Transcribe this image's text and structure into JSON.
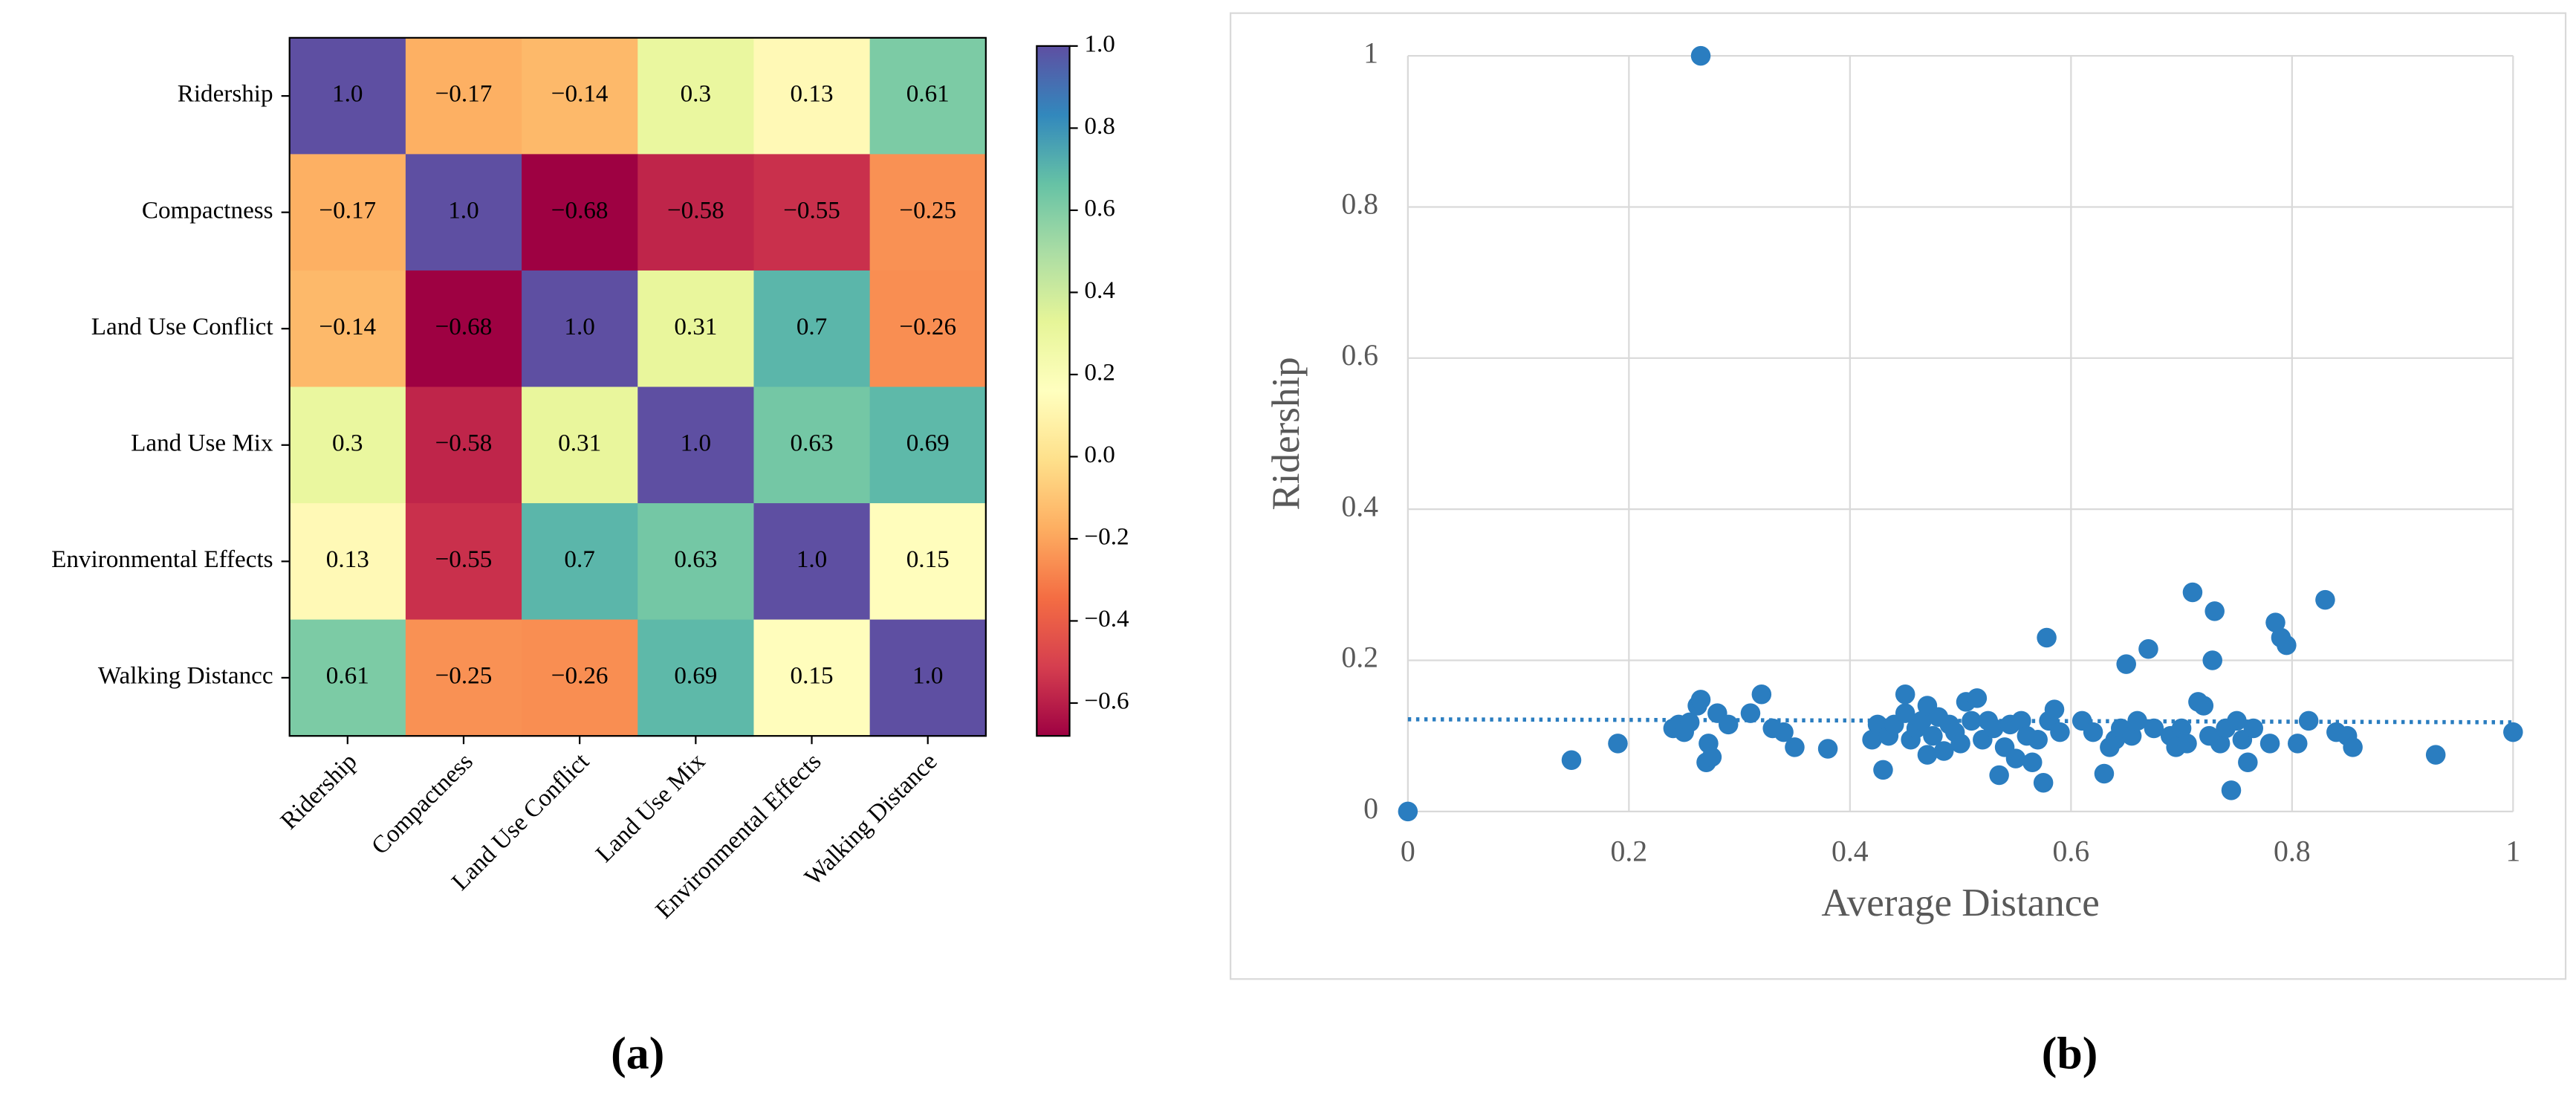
{
  "chart_data": [
    {
      "type": "heatmap",
      "panel_label": "(a)",
      "colormap": "Spectral",
      "row_categories": [
        "Ridership",
        "Compactness",
        "Land Use Conflict",
        "Land Use Mix",
        "Environmental Effects",
        "Walking Distancc"
      ],
      "col_categories": [
        "Ridership",
        "Compactness",
        "Land Use Conflict",
        "Land Use Mix",
        "Environmental Effects",
        "Walking Distance"
      ],
      "values": [
        [
          1.0,
          -0.17,
          -0.14,
          0.3,
          0.13,
          0.61
        ],
        [
          -0.17,
          1.0,
          -0.68,
          -0.58,
          -0.55,
          -0.25
        ],
        [
          -0.14,
          -0.68,
          1.0,
          0.31,
          0.7,
          -0.26
        ],
        [
          0.3,
          -0.58,
          0.31,
          1.0,
          0.63,
          0.69
        ],
        [
          0.13,
          -0.55,
          0.7,
          0.63,
          1.0,
          0.15
        ],
        [
          0.61,
          -0.25,
          -0.26,
          0.69,
          0.15,
          1.0
        ]
      ],
      "value_labels": [
        [
          "1.0",
          "−0.17",
          "−0.14",
          "0.3",
          "0.13",
          "0.61"
        ],
        [
          "−0.17",
          "1.0",
          "−0.68",
          "−0.58",
          "−0.55",
          "−0.25"
        ],
        [
          "−0.14",
          "−0.68",
          "1.0",
          "0.31",
          "0.7",
          "−0.26"
        ],
        [
          "0.3",
          "−0.58",
          "0.31",
          "1.0",
          "0.63",
          "0.69"
        ],
        [
          "0.13",
          "−0.55",
          "0.7",
          "0.63",
          "1.0",
          "0.15"
        ],
        [
          "0.61",
          "−0.25",
          "−0.26",
          "0.69",
          "0.15",
          "1.0"
        ]
      ],
      "clim": [
        -0.68,
        1.0
      ],
      "cticks": [
        {
          "value": 1.0,
          "label": "1.0"
        },
        {
          "value": 0.8,
          "label": "0.8"
        },
        {
          "value": 0.6,
          "label": "0.6"
        },
        {
          "value": 0.4,
          "label": "0.4"
        },
        {
          "value": 0.2,
          "label": "0.2"
        },
        {
          "value": 0.0,
          "label": "0.0"
        },
        {
          "value": -0.2,
          "label": "−0.2"
        },
        {
          "value": -0.4,
          "label": "−0.4"
        },
        {
          "value": -0.6,
          "label": "−0.6"
        }
      ]
    },
    {
      "type": "scatter",
      "panel_label": "(b)",
      "xlabel": "Average Distance",
      "ylabel": "Ridership",
      "color": "#2a7dc0",
      "grid": true,
      "xlim": [
        0,
        1
      ],
      "ylim": [
        0,
        1
      ],
      "xticks": [
        0,
        0.2,
        0.4,
        0.6,
        0.8,
        1
      ],
      "yticks": [
        0,
        0.2,
        0.4,
        0.6,
        0.8,
        1
      ],
      "x": [
        0,
        0.265,
        0.148,
        0.19,
        0.24,
        0.245,
        0.25,
        0.255,
        0.262,
        0.265,
        0.27,
        0.272,
        0.275,
        0.28,
        0.29,
        0.31,
        0.32,
        0.33,
        0.34,
        0.35,
        0.38,
        0.42,
        0.425,
        0.43,
        0.435,
        0.44,
        0.45,
        0.45,
        0.455,
        0.46,
        0.465,
        0.47,
        0.47,
        0.475,
        0.48,
        0.485,
        0.49,
        0.495,
        0.5,
        0.505,
        0.51,
        0.515,
        0.52,
        0.525,
        0.53,
        0.535,
        0.54,
        0.545,
        0.55,
        0.555,
        0.56,
        0.565,
        0.57,
        0.575,
        0.578,
        0.58,
        0.585,
        0.59,
        0.61,
        0.62,
        0.63,
        0.635,
        0.64,
        0.645,
        0.65,
        0.655,
        0.66,
        0.67,
        0.675,
        0.69,
        0.695,
        0.7,
        0.705,
        0.71,
        0.715,
        0.72,
        0.725,
        0.728,
        0.73,
        0.735,
        0.74,
        0.745,
        0.75,
        0.755,
        0.76,
        0.765,
        0.78,
        0.785,
        0.79,
        0.795,
        0.805,
        0.815,
        0.83,
        0.84,
        0.85,
        0.855,
        0.93,
        1.0
      ],
      "y": [
        0,
        1.0,
        0.068,
        0.09,
        0.11,
        0.115,
        0.105,
        0.118,
        0.14,
        0.148,
        0.065,
        0.09,
        0.072,
        0.13,
        0.115,
        0.13,
        0.155,
        0.11,
        0.105,
        0.085,
        0.083,
        0.095,
        0.115,
        0.055,
        0.1,
        0.115,
        0.13,
        0.155,
        0.095,
        0.11,
        0.12,
        0.075,
        0.14,
        0.1,
        0.125,
        0.08,
        0.115,
        0.105,
        0.09,
        0.145,
        0.12,
        0.15,
        0.095,
        0.12,
        0.11,
        0.048,
        0.085,
        0.115,
        0.07,
        0.12,
        0.1,
        0.065,
        0.095,
        0.038,
        0.23,
        0.12,
        0.135,
        0.105,
        0.12,
        0.105,
        0.05,
        0.085,
        0.095,
        0.11,
        0.195,
        0.1,
        0.12,
        0.215,
        0.11,
        0.1,
        0.085,
        0.11,
        0.09,
        0.29,
        0.145,
        0.14,
        0.1,
        0.2,
        0.265,
        0.09,
        0.11,
        0.028,
        0.12,
        0.095,
        0.065,
        0.11,
        0.09,
        0.25,
        0.23,
        0.22,
        0.09,
        0.12,
        0.28,
        0.105,
        0.1,
        0.085,
        0.075,
        0.105
      ],
      "trendline": {
        "x": [
          0,
          1
        ],
        "y": [
          0.122,
          0.118
        ]
      }
    }
  ]
}
